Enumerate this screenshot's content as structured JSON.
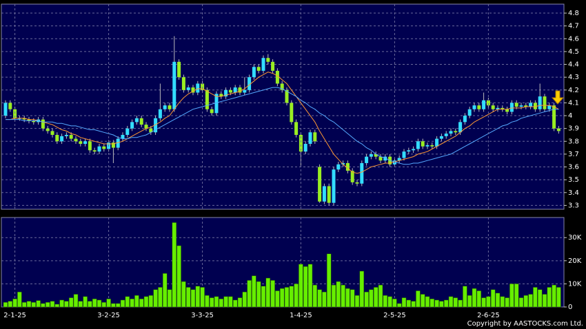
{
  "chart_data": [
    {
      "type": "candlestick",
      "categories": [
        null,
        null,
        "2-1-25",
        null,
        null,
        null,
        null,
        null,
        null,
        null,
        null,
        null,
        null,
        null,
        null,
        null,
        null,
        null,
        null,
        null,
        null,
        null,
        "3-2-25",
        null,
        null,
        null,
        null,
        null,
        null,
        null,
        null,
        null,
        null,
        null,
        null,
        null,
        null,
        null,
        null,
        null,
        null,
        null,
        "3-3-25",
        null,
        null,
        null,
        null,
        null,
        null,
        null,
        null,
        null,
        null,
        null,
        null,
        null,
        null,
        null,
        null,
        null,
        null,
        null,
        null,
        "1-4-25",
        null,
        null,
        null,
        null,
        null,
        null,
        null,
        null,
        null,
        null,
        null,
        null,
        null,
        null,
        null,
        null,
        null,
        null,
        null,
        "2-5-25",
        null,
        null,
        null,
        null,
        null,
        null,
        null,
        null,
        null,
        null,
        null,
        null,
        null,
        null,
        null,
        null,
        null,
        null,
        null,
        "2-6-25",
        null,
        null,
        null,
        null,
        null,
        null,
        null,
        null,
        null,
        null,
        null,
        null,
        null,
        null,
        null
      ],
      "open": [
        4.0,
        4.1,
        4.05,
        3.98,
        3.98,
        3.97,
        3.96,
        3.95,
        3.97,
        3.9,
        3.88,
        3.85,
        3.8,
        3.84,
        3.85,
        3.82,
        3.8,
        3.78,
        3.8,
        3.73,
        3.72,
        3.76,
        3.74,
        3.79,
        3.75,
        3.82,
        3.85,
        3.9,
        3.95,
        3.98,
        3.93,
        3.9,
        3.87,
        3.98,
        4.05,
        4.08,
        4.05,
        4.42,
        4.3,
        4.2,
        4.22,
        4.18,
        4.25,
        4.2,
        4.05,
        4.02,
        4.17,
        4.15,
        4.2,
        4.18,
        4.22,
        4.18,
        4.2,
        4.3,
        4.38,
        4.35,
        4.45,
        4.42,
        4.35,
        4.25,
        4.2,
        4.1,
        3.95,
        3.85,
        3.72,
        3.78,
        3.87,
        3.6,
        3.33,
        3.45,
        3.32,
        3.58,
        3.62,
        3.63,
        3.57,
        3.48,
        3.47,
        3.63,
        3.68,
        3.7,
        3.68,
        3.65,
        3.68,
        3.62,
        3.65,
        3.67,
        3.72,
        3.73,
        3.74,
        3.8,
        3.76,
        3.77,
        3.76,
        3.82,
        3.84,
        3.86,
        3.88,
        3.87,
        3.95,
        4.0,
        4.05,
        4.08,
        4.05,
        4.12,
        4.08,
        4.05,
        4.06,
        4.05,
        4.03,
        4.1,
        4.07,
        4.08,
        4.07,
        4.1,
        4.05,
        4.15,
        4.05,
        4.08,
        3.9
      ],
      "high": [
        4.12,
        4.12,
        4.07,
        4.0,
        4.0,
        3.99,
        3.98,
        3.99,
        3.99,
        3.92,
        3.9,
        3.87,
        3.86,
        3.87,
        3.87,
        3.84,
        3.82,
        3.82,
        3.82,
        3.75,
        3.78,
        3.78,
        3.81,
        3.81,
        3.84,
        3.87,
        3.92,
        3.97,
        4.0,
        4.0,
        3.95,
        3.92,
        4.0,
        4.25,
        4.1,
        4.1,
        4.62,
        4.44,
        4.32,
        4.24,
        4.24,
        4.27,
        4.27,
        4.22,
        4.07,
        4.19,
        4.19,
        4.22,
        4.22,
        4.24,
        4.24,
        4.3,
        4.32,
        4.4,
        4.4,
        4.47,
        4.48,
        4.44,
        4.37,
        4.27,
        4.22,
        4.12,
        3.97,
        3.87,
        3.8,
        3.89,
        3.89,
        3.62,
        3.47,
        3.47,
        3.6,
        3.64,
        3.65,
        3.65,
        3.59,
        3.5,
        3.65,
        3.7,
        3.72,
        3.72,
        3.7,
        3.7,
        3.7,
        3.67,
        3.69,
        3.74,
        3.75,
        3.76,
        3.82,
        3.82,
        3.79,
        3.79,
        3.84,
        3.86,
        3.88,
        3.9,
        3.9,
        3.97,
        4.02,
        4.07,
        4.1,
        4.1,
        4.18,
        4.14,
        4.1,
        4.08,
        4.08,
        4.07,
        4.12,
        4.12,
        4.1,
        4.1,
        4.12,
        4.12,
        4.25,
        4.17,
        4.1,
        4.1,
        3.92
      ],
      "low": [
        3.98,
        4.03,
        3.96,
        3.96,
        3.95,
        3.94,
        3.93,
        3.93,
        3.88,
        3.86,
        3.83,
        3.78,
        3.78,
        3.82,
        3.8,
        3.78,
        3.76,
        3.76,
        3.71,
        3.7,
        3.7,
        3.72,
        3.72,
        3.63,
        3.73,
        3.8,
        3.83,
        3.88,
        3.93,
        3.91,
        3.88,
        3.85,
        3.85,
        3.96,
        4.03,
        4.03,
        4.03,
        4.28,
        4.18,
        4.18,
        4.16,
        4.16,
        4.18,
        4.03,
        4.0,
        4.0,
        4.13,
        4.13,
        4.16,
        4.16,
        4.16,
        4.16,
        4.18,
        4.28,
        4.33,
        4.33,
        4.4,
        4.33,
        4.23,
        4.18,
        4.08,
        3.93,
        3.83,
        3.6,
        3.7,
        3.76,
        3.78,
        3.32,
        3.31,
        3.3,
        3.3,
        3.56,
        3.6,
        3.55,
        3.46,
        3.45,
        3.45,
        3.61,
        3.66,
        3.66,
        3.63,
        3.63,
        3.6,
        3.6,
        3.63,
        3.65,
        3.7,
        3.71,
        3.72,
        3.74,
        3.74,
        3.74,
        3.74,
        3.8,
        3.82,
        3.84,
        3.85,
        3.85,
        3.93,
        3.98,
        4.03,
        4.03,
        4.03,
        4.06,
        4.03,
        4.03,
        4.03,
        4.01,
        4.01,
        4.05,
        4.05,
        4.05,
        4.05,
        4.03,
        4.03,
        4.03,
        4.03,
        3.88,
        3.86
      ],
      "close": [
        4.1,
        4.05,
        3.98,
        3.98,
        3.97,
        3.96,
        3.95,
        3.97,
        3.9,
        3.88,
        3.85,
        3.8,
        3.84,
        3.85,
        3.82,
        3.8,
        3.78,
        3.8,
        3.73,
        3.72,
        3.76,
        3.74,
        3.79,
        3.75,
        3.82,
        3.85,
        3.9,
        3.95,
        3.98,
        3.93,
        3.9,
        3.87,
        3.98,
        4.05,
        4.08,
        4.05,
        4.42,
        4.3,
        4.2,
        4.22,
        4.18,
        4.25,
        4.2,
        4.05,
        4.02,
        4.17,
        4.15,
        4.2,
        4.18,
        4.22,
        4.18,
        4.2,
        4.3,
        4.38,
        4.35,
        4.45,
        4.42,
        4.35,
        4.25,
        4.2,
        4.1,
        3.95,
        3.85,
        3.72,
        3.78,
        3.87,
        3.8,
        3.33,
        3.45,
        3.32,
        3.58,
        3.62,
        3.63,
        3.57,
        3.48,
        3.47,
        3.63,
        3.68,
        3.7,
        3.68,
        3.65,
        3.68,
        3.62,
        3.65,
        3.67,
        3.72,
        3.73,
        3.74,
        3.8,
        3.76,
        3.77,
        3.76,
        3.82,
        3.84,
        3.86,
        3.88,
        3.87,
        3.95,
        4.0,
        4.05,
        4.08,
        4.05,
        4.12,
        4.08,
        4.05,
        4.06,
        4.05,
        4.03,
        4.1,
        4.07,
        4.08,
        4.07,
        4.1,
        4.05,
        4.15,
        4.05,
        4.08,
        3.9,
        3.88
      ],
      "up_color": "#33ddff",
      "down_color": "#99ee22",
      "series": [
        {
          "color": "#ff9933",
          "values": [
            3.97,
            3.97,
            3.98,
            3.98,
            3.98,
            3.97,
            3.97,
            3.96,
            3.95,
            3.94,
            3.93,
            3.91,
            3.89,
            3.88,
            3.86,
            3.85,
            3.83,
            3.82,
            3.81,
            3.8,
            3.79,
            3.78,
            3.78,
            3.78,
            3.79,
            3.8,
            3.82,
            3.84,
            3.86,
            3.88,
            3.9,
            3.91,
            3.93,
            3.95,
            3.98,
            4.0,
            4.05,
            4.1,
            4.14,
            4.17,
            4.19,
            4.21,
            4.21,
            4.19,
            4.17,
            4.15,
            4.15,
            4.16,
            4.17,
            4.18,
            4.19,
            4.21,
            4.24,
            4.27,
            4.3,
            4.32,
            4.34,
            4.33,
            4.31,
            4.28,
            4.25,
            4.2,
            4.15,
            4.1,
            4.05,
            4.0,
            3.95,
            3.88,
            3.82,
            3.76,
            3.7,
            3.66,
            3.62,
            3.59,
            3.56,
            3.55,
            3.56,
            3.58,
            3.6,
            3.61,
            3.62,
            3.63,
            3.63,
            3.64,
            3.65,
            3.66,
            3.67,
            3.68,
            3.7,
            3.71,
            3.72,
            3.74,
            3.76,
            3.78,
            3.8,
            3.82,
            3.84,
            3.87,
            3.9,
            3.92,
            3.95,
            3.97,
            3.99,
            4.01,
            4.03,
            4.05,
            4.05,
            4.05,
            4.06,
            4.06,
            4.06,
            4.07,
            4.07,
            4.07,
            4.08,
            4.08,
            4.08,
            4.07,
            4.05
          ]
        },
        {
          "color": "#55aaff",
          "values": [
            3.97,
            3.97,
            3.97,
            3.97,
            3.96,
            3.96,
            3.96,
            3.96,
            3.95,
            3.95,
            3.95,
            3.94,
            3.94,
            3.93,
            3.92,
            3.92,
            3.91,
            3.9,
            3.89,
            3.89,
            3.88,
            3.87,
            3.86,
            3.85,
            3.83,
            3.82,
            3.82,
            3.83,
            3.83,
            3.84,
            3.85,
            3.87,
            3.89,
            3.91,
            3.93,
            3.95,
            3.97,
            3.99,
            4.01,
            4.03,
            4.05,
            4.06,
            4.07,
            4.08,
            4.09,
            4.1,
            4.11,
            4.12,
            4.13,
            4.14,
            4.15,
            4.16,
            4.17,
            4.18,
            4.19,
            4.2,
            4.21,
            4.22,
            4.22,
            4.21,
            4.19,
            4.17,
            4.15,
            4.12,
            4.1,
            4.07,
            4.05,
            4.02,
            4.0,
            3.97,
            3.95,
            3.92,
            3.89,
            3.86,
            3.83,
            3.8,
            3.78,
            3.75,
            3.73,
            3.7,
            3.68,
            3.67,
            3.65,
            3.64,
            3.63,
            3.62,
            3.62,
            3.63,
            3.63,
            3.64,
            3.65,
            3.66,
            3.67,
            3.68,
            3.69,
            3.7,
            3.72,
            3.74,
            3.76,
            3.78,
            3.8,
            3.82,
            3.84,
            3.86,
            3.88,
            3.9,
            3.92,
            3.93,
            3.95,
            3.96,
            3.98,
            3.99,
            4.0,
            4.01,
            4.02,
            4.03,
            4.04,
            4.05,
            4.05
          ]
        }
      ],
      "ylim": [
        3.27,
        4.87
      ],
      "yticks": [
        3.3,
        3.4,
        3.5,
        3.6,
        3.7,
        3.8,
        3.9,
        4,
        4.1,
        4.2,
        4.3,
        4.4,
        4.5,
        4.6,
        4.7,
        4.8
      ],
      "grid": true
    },
    {
      "type": "bar",
      "color": "#66ee00",
      "values": [
        2000,
        2500,
        3500,
        6500,
        2000,
        2500,
        2000,
        2800,
        1500,
        2000,
        2500,
        1200,
        3000,
        2500,
        4000,
        5500,
        2500,
        4500,
        2500,
        3500,
        3000,
        2000,
        3500,
        1500,
        1500,
        3000,
        4500,
        3500,
        5000,
        3500,
        4500,
        5000,
        7500,
        8500,
        14500,
        7500,
        36500,
        26500,
        11000,
        8500,
        7500,
        9000,
        8500,
        5000,
        4000,
        4500,
        3500,
        4500,
        4500,
        3000,
        4000,
        6500,
        11500,
        13500,
        11000,
        9000,
        12500,
        11500,
        7000,
        8000,
        8500,
        9000,
        10000,
        18500,
        17500,
        18500,
        9500,
        7500,
        6500,
        23000,
        9500,
        11000,
        9500,
        8000,
        7500,
        5000,
        15500,
        6500,
        7500,
        8500,
        9500,
        5000,
        4500,
        3500,
        1500,
        4000,
        3000,
        2500,
        7000,
        5500,
        4500,
        3500,
        3000,
        2500,
        3000,
        4500,
        4000,
        3000,
        9000,
        5000,
        8000,
        7000,
        4000,
        4500,
        7500,
        6000,
        4500,
        4000,
        10000,
        10000,
        4000,
        5000,
        5500,
        8500,
        7500,
        5500,
        8500,
        9500,
        8500
      ],
      "ylim": [
        0,
        38700
      ],
      "yticks": [
        0,
        {
          "value": 10000,
          "label": "10K"
        },
        {
          "value": 20000,
          "label": "20K"
        },
        {
          "value": 30000,
          "label": "30K"
        }
      ],
      "grid": true,
      "annotation": "Copyright by AASTOCKS.com Ltd."
    }
  ]
}
